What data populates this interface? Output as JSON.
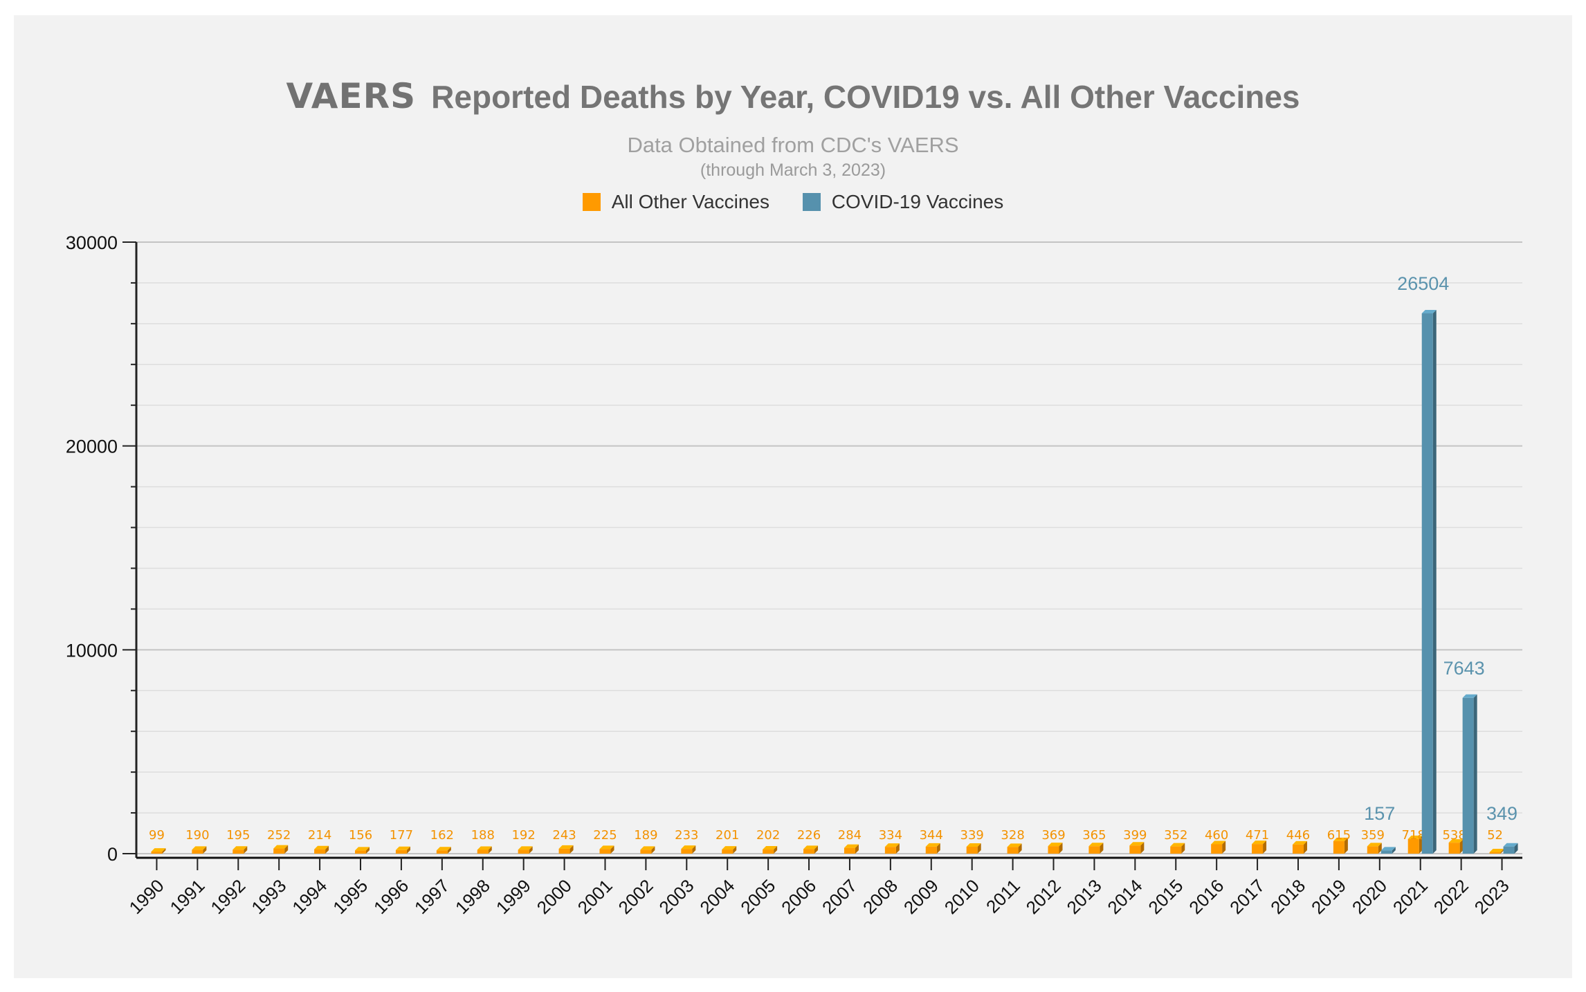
{
  "header": {
    "logo_text": "VAERS",
    "title": "Reported Deaths by Year, COVID19 vs. All Other Vaccines",
    "subtitle": "Data Obtained from CDC's VAERS",
    "note": "(through March 3, 2023)"
  },
  "legend": {
    "items": [
      {
        "label": "All Other Vaccines",
        "color": "#ff9a00"
      },
      {
        "label": "COVID-19 Vaccines",
        "color": "#5691ad"
      }
    ]
  },
  "chart_data": {
    "type": "bar",
    "title": "VAERS Reported Deaths by Year, COVID19 vs. All Other Vaccines",
    "subtitle": "Data Obtained from CDC's VAERS",
    "xlabel": "",
    "ylabel": "",
    "ylim": [
      0,
      30000
    ],
    "y_ticks": [
      0,
      10000,
      20000,
      30000
    ],
    "grid": true,
    "legend_position": "top-center",
    "categories": [
      "1990",
      "1991",
      "1992",
      "1993",
      "1994",
      "1995",
      "1996",
      "1997",
      "1998",
      "1999",
      "2000",
      "2001",
      "2002",
      "2003",
      "2004",
      "2005",
      "2006",
      "2007",
      "2008",
      "2009",
      "2010",
      "2011",
      "2012",
      "2013",
      "2014",
      "2015",
      "2016",
      "2017",
      "2018",
      "2019",
      "2020",
      "2021",
      "2022",
      "2023"
    ],
    "series": [
      {
        "name": "All Other Vaccines",
        "color": "#ff9a00",
        "values": [
          99,
          190,
          195,
          252,
          214,
          156,
          177,
          162,
          188,
          192,
          243,
          225,
          189,
          233,
          201,
          202,
          226,
          284,
          334,
          344,
          339,
          328,
          369,
          365,
          399,
          352,
          460,
          471,
          446,
          615,
          359,
          718,
          538,
          52
        ]
      },
      {
        "name": "COVID-19 Vaccines",
        "color": "#5691ad",
        "values": [
          null,
          null,
          null,
          null,
          null,
          null,
          null,
          null,
          null,
          null,
          null,
          null,
          null,
          null,
          null,
          null,
          null,
          null,
          null,
          null,
          null,
          null,
          null,
          null,
          null,
          null,
          null,
          null,
          null,
          null,
          157,
          26504,
          7643,
          349
        ]
      }
    ]
  }
}
